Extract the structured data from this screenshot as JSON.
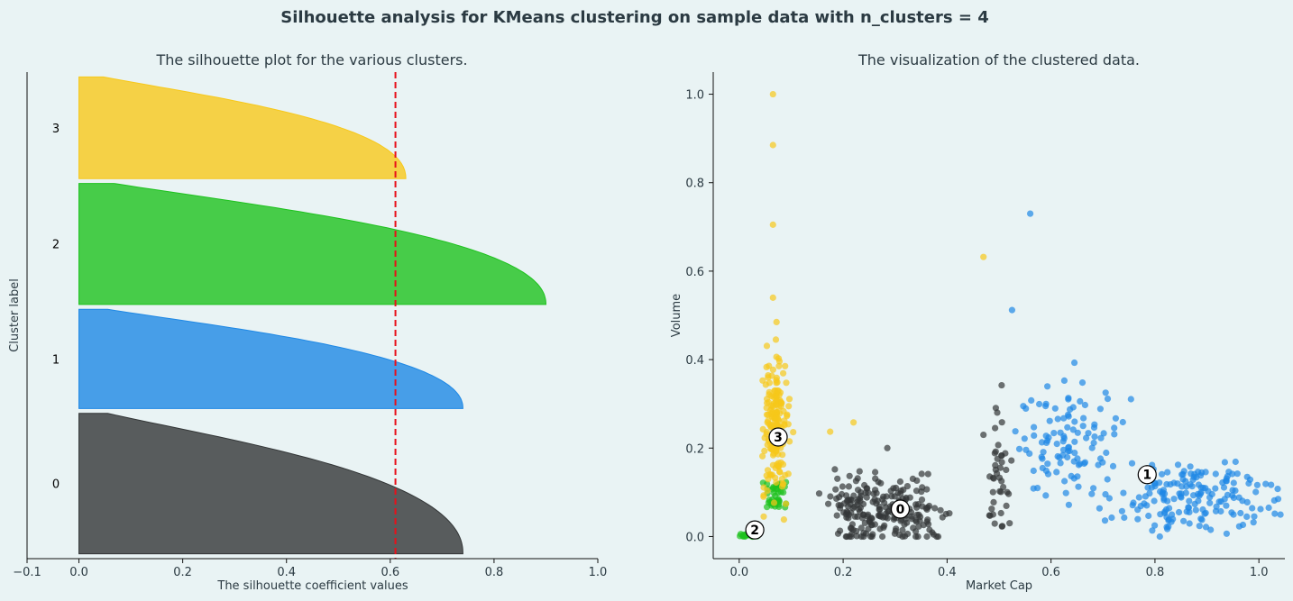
{
  "figure": {
    "suptitle": "Silhouette analysis for KMeans clustering on sample data with n_clusters = 4"
  },
  "colors": {
    "cluster_0": "#333637",
    "cluster_1": "#1e88e5",
    "cluster_2": "#1ec21e",
    "cluster_3": "#f7c81a",
    "avg_line": "#e8101a",
    "axis": "#111111",
    "background": "#e9f3f4"
  },
  "chart_data": [
    {
      "type": "area",
      "title": "The silhouette plot for the various clusters.",
      "xlabel": "The silhouette coefficient values",
      "ylabel": "Cluster label",
      "xlim": [
        -0.1,
        1.0
      ],
      "xticks": [
        "−0.1",
        "0.0",
        "0.2",
        "0.4",
        "0.6",
        "0.8",
        "1.0"
      ],
      "xtick_values": [
        -0.1,
        0.0,
        0.2,
        0.4,
        0.6,
        0.8,
        1.0
      ],
      "average_silhouette": 0.61,
      "clusters": [
        {
          "label": "0",
          "size": 290,
          "max": 0.74,
          "min": 0.0
        },
        {
          "label": "1",
          "size": 205,
          "max": 0.74,
          "min": 0.0
        },
        {
          "label": "2",
          "size": 250,
          "max": 0.9,
          "min": 0.0
        },
        {
          "label": "3",
          "size": 210,
          "max": 0.63,
          "min": 0.0
        }
      ]
    },
    {
      "type": "scatter",
      "title": "The visualization of the clustered data.",
      "xlabel": "Market Cap",
      "ylabel": "Volume",
      "xlim": [
        -0.05,
        1.05
      ],
      "ylim": [
        -0.05,
        1.05
      ],
      "xticks": [
        "0.0",
        "0.2",
        "0.4",
        "0.6",
        "0.8",
        "1.0"
      ],
      "xtick_values": [
        0.0,
        0.2,
        0.4,
        0.6,
        0.8,
        1.0
      ],
      "yticks": [
        "0.0",
        "0.2",
        "0.4",
        "0.6",
        "0.8",
        "1.0"
      ],
      "ytick_values": [
        0.0,
        0.2,
        0.4,
        0.6,
        0.8,
        1.0
      ],
      "centers": [
        {
          "label": "0",
          "x": 0.31,
          "y": 0.062
        },
        {
          "label": "1",
          "x": 0.785,
          "y": 0.14
        },
        {
          "label": "2",
          "x": 0.03,
          "y": 0.015
        },
        {
          "label": "3",
          "x": 0.075,
          "y": 0.225
        }
      ],
      "groups": [
        {
          "cluster": 0,
          "x_center": 0.22,
          "x_spread": 0.025,
          "y_center": 0.06,
          "y_spread": 0.04,
          "count": 90
        },
        {
          "cluster": 0,
          "x_center": 0.32,
          "x_spread": 0.04,
          "y_center": 0.055,
          "y_spread": 0.035,
          "count": 130
        },
        {
          "cluster": 0,
          "x_center": 0.5,
          "x_spread": 0.012,
          "y_center": 0.13,
          "y_spread": 0.07,
          "count": 40
        },
        {
          "cluster": 1,
          "x_center": 0.63,
          "x_spread": 0.05,
          "y_center": 0.2,
          "y_spread": 0.07,
          "count": 110
        },
        {
          "cluster": 1,
          "x_center": 0.88,
          "x_spread": 0.07,
          "y_center": 0.09,
          "y_spread": 0.04,
          "count": 170
        },
        {
          "cluster": 2,
          "x_center": 0.02,
          "x_spread": 0.01,
          "y_center": 0.003,
          "y_spread": 0.003,
          "count": 20
        },
        {
          "cluster": 2,
          "x_center": 0.07,
          "x_spread": 0.012,
          "y_center": 0.09,
          "y_spread": 0.02,
          "count": 40
        },
        {
          "cluster": 3,
          "x_center": 0.07,
          "x_spread": 0.013,
          "y_center": 0.25,
          "y_spread": 0.08,
          "count": 180
        }
      ],
      "outliers": [
        {
          "cluster": 3,
          "x": 0.065,
          "y": 1.0
        },
        {
          "cluster": 3,
          "x": 0.065,
          "y": 0.885
        },
        {
          "cluster": 3,
          "x": 0.065,
          "y": 0.705
        },
        {
          "cluster": 3,
          "x": 0.065,
          "y": 0.54
        },
        {
          "cluster": 3,
          "x": 0.47,
          "y": 0.632
        },
        {
          "cluster": 3,
          "x": 0.175,
          "y": 0.237
        },
        {
          "cluster": 3,
          "x": 0.22,
          "y": 0.258
        },
        {
          "cluster": 1,
          "x": 0.56,
          "y": 0.73
        },
        {
          "cluster": 1,
          "x": 0.525,
          "y": 0.512
        },
        {
          "cluster": 1,
          "x": 0.645,
          "y": 0.393
        },
        {
          "cluster": 0,
          "x": 0.47,
          "y": 0.23
        },
        {
          "cluster": 0,
          "x": 0.505,
          "y": 0.342
        },
        {
          "cluster": 0,
          "x": 0.285,
          "y": 0.2
        }
      ]
    }
  ]
}
